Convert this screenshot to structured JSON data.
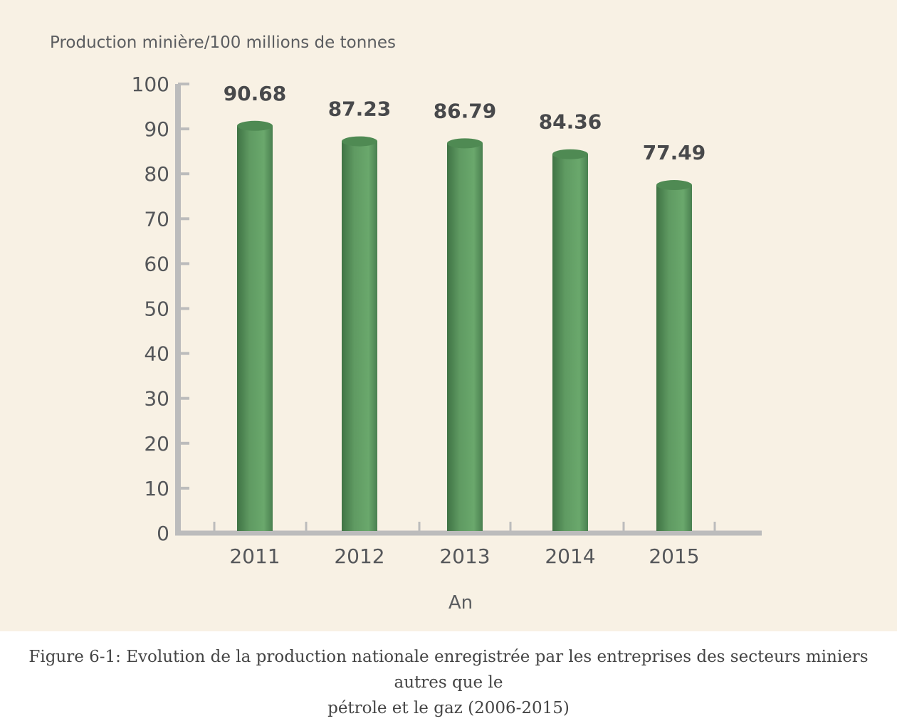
{
  "chart_data": {
    "type": "bar",
    "ylabel": "Production minière/100 millions de tonnes",
    "xlabel": "An",
    "categories": [
      "2011",
      "2012",
      "2013",
      "2014",
      "2015"
    ],
    "values": [
      90.68,
      87.23,
      86.79,
      84.36,
      77.49
    ],
    "value_labels": [
      "90.68",
      "87.23",
      "86.79",
      "84.36",
      "77.49"
    ],
    "yticks": [
      0,
      10,
      20,
      30,
      40,
      50,
      60,
      70,
      80,
      90,
      100
    ],
    "ylim": [
      0,
      100
    ],
    "grid": false,
    "legend": "none",
    "bar_color": "#5f9a62",
    "bar_style": "cylinder"
  },
  "caption": {
    "line1": "Figure 6-1: Evolution de la production nationale enregistrée par les entreprises des secteurs miniers autres que le",
    "line2": "pétrole et le gaz (2006-2015)"
  },
  "colors": {
    "background": "#f8f1e4",
    "axis": "#bcbcbc"
  }
}
